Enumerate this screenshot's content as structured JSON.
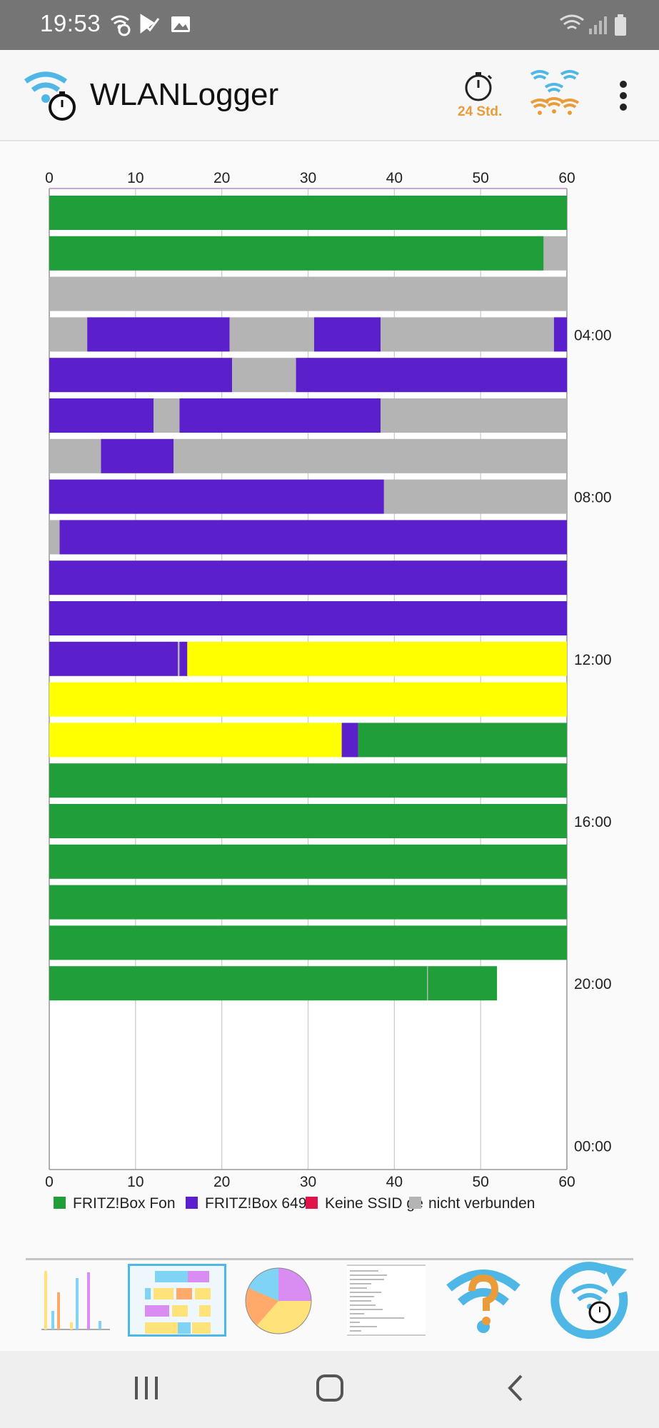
{
  "status_bar": {
    "time": "19:53",
    "left_icons": [
      "wifi-timer-icon",
      "download-check-icon",
      "image-icon"
    ],
    "right_icons": [
      "wifi-signal-icon",
      "cell-signal-icon",
      "battery-icon"
    ]
  },
  "app_bar": {
    "title": "WLANLogger",
    "timer_label": "24 Std.",
    "icons": [
      "wlanlogger-logo-icon",
      "stopwatch-icon",
      "wifi-networks-icon",
      "more-vert-icon"
    ]
  },
  "colors": {
    "fritz_fon": "#1f9e3a",
    "fritz_649": "#5b1fcc",
    "keine_ssid": "#e0144a",
    "nicht_verbunden": "#b4b4b4",
    "unknown_yellow": "#ffff00",
    "accent_blue": "#4fb7e6",
    "accent_orange": "#ea9c3b"
  },
  "chart_data": {
    "type": "bar",
    "orientation": "horizontal-stacked-timeline",
    "x_ticks": [
      "0",
      "10",
      "20",
      "30",
      "40",
      "50",
      "60"
    ],
    "xlim": [
      0,
      60
    ],
    "x_unit": "minutes",
    "y_labels": [
      "04:00",
      "08:00",
      "12:00",
      "16:00",
      "20:00",
      "00:00"
    ],
    "grid": true,
    "legend": [
      {
        "name": "FRITZ!Box Fon",
        "color": "#1f9e3a"
      },
      {
        "name": "FRITZ!Box 649",
        "color": "#5b1fcc"
      },
      {
        "name": "Keine SSID ge",
        "color": "#e0144a"
      },
      {
        "name": "nicht verbunden",
        "color": "#b4b4b4"
      }
    ],
    "legend_position": "bottom",
    "hours": [
      {
        "segments": [
          {
            "start": 0,
            "end": 60,
            "color": "#1f9e3a"
          }
        ]
      },
      {
        "segments": [
          {
            "start": 0,
            "end": 57.3,
            "color": "#1f9e3a"
          },
          {
            "start": 57.3,
            "end": 60,
            "color": "#b4b4b4"
          }
        ]
      },
      {
        "segments": [
          {
            "start": 0,
            "end": 60,
            "color": "#b4b4b4"
          }
        ]
      },
      {
        "segments": [
          {
            "start": 0,
            "end": 4.4,
            "color": "#b4b4b4"
          },
          {
            "start": 4.4,
            "end": 20.9,
            "color": "#5b1fcc"
          },
          {
            "start": 20.9,
            "end": 30.7,
            "color": "#b4b4b4"
          },
          {
            "start": 30.7,
            "end": 38.4,
            "color": "#5b1fcc"
          },
          {
            "start": 38.4,
            "end": 58.5,
            "color": "#b4b4b4"
          },
          {
            "start": 58.5,
            "end": 60,
            "color": "#5b1fcc"
          }
        ]
      },
      {
        "segments": [
          {
            "start": 0,
            "end": 21.2,
            "color": "#5b1fcc"
          },
          {
            "start": 21.2,
            "end": 28.6,
            "color": "#b4b4b4"
          },
          {
            "start": 28.6,
            "end": 60,
            "color": "#5b1fcc"
          }
        ]
      },
      {
        "segments": [
          {
            "start": 0,
            "end": 12.1,
            "color": "#5b1fcc"
          },
          {
            "start": 12.1,
            "end": 15.1,
            "color": "#b4b4b4"
          },
          {
            "start": 15.1,
            "end": 38.4,
            "color": "#5b1fcc"
          },
          {
            "start": 38.4,
            "end": 60,
            "color": "#b4b4b4"
          }
        ]
      },
      {
        "segments": [
          {
            "start": 0,
            "end": 6.0,
            "color": "#b4b4b4"
          },
          {
            "start": 6.0,
            "end": 14.4,
            "color": "#5b1fcc"
          },
          {
            "start": 14.4,
            "end": 60,
            "color": "#b4b4b4"
          }
        ]
      },
      {
        "segments": [
          {
            "start": 0,
            "end": 38.8,
            "color": "#5b1fcc"
          },
          {
            "start": 38.8,
            "end": 60,
            "color": "#b4b4b4"
          }
        ]
      },
      {
        "segments": [
          {
            "start": 0,
            "end": 1.2,
            "color": "#b4b4b4"
          },
          {
            "start": 1.2,
            "end": 60,
            "color": "#5b1fcc"
          }
        ]
      },
      {
        "segments": [
          {
            "start": 0,
            "end": 60,
            "color": "#5b1fcc"
          }
        ]
      },
      {
        "segments": [
          {
            "start": 0,
            "end": 60,
            "color": "#5b1fcc"
          }
        ]
      },
      {
        "segments": [
          {
            "start": 0,
            "end": 14.9,
            "color": "#5b1fcc"
          },
          {
            "start": 14.9,
            "end": 15.1,
            "color": "#b4b4b4"
          },
          {
            "start": 15.1,
            "end": 16.0,
            "color": "#5b1fcc"
          },
          {
            "start": 16.0,
            "end": 60,
            "color": "#ffff00"
          }
        ]
      },
      {
        "segments": [
          {
            "start": 0,
            "end": 60,
            "color": "#ffff00"
          }
        ]
      },
      {
        "segments": [
          {
            "start": 0,
            "end": 33.9,
            "color": "#ffff00"
          },
          {
            "start": 33.9,
            "end": 35.8,
            "color": "#5b1fcc"
          },
          {
            "start": 35.8,
            "end": 60,
            "color": "#1f9e3a"
          }
        ]
      },
      {
        "segments": [
          {
            "start": 0,
            "end": 60,
            "color": "#1f9e3a"
          }
        ]
      },
      {
        "segments": [
          {
            "start": 0,
            "end": 60,
            "color": "#1f9e3a"
          }
        ]
      },
      {
        "segments": [
          {
            "start": 0,
            "end": 60,
            "color": "#1f9e3a"
          }
        ]
      },
      {
        "segments": [
          {
            "start": 0,
            "end": 60,
            "color": "#1f9e3a"
          }
        ]
      },
      {
        "segments": [
          {
            "start": 0,
            "end": 60,
            "color": "#1f9e3a"
          }
        ]
      },
      {
        "segments": [
          {
            "start": 0,
            "end": 43.8,
            "color": "#1f9e3a"
          },
          {
            "start": 43.8,
            "end": 43.9,
            "color": "#b4b4b4"
          },
          {
            "start": 43.9,
            "end": 51.9,
            "color": "#1f9e3a"
          }
        ]
      }
    ]
  },
  "bottom_tabs": [
    {
      "name": "bar-chart-tab",
      "selected": false
    },
    {
      "name": "timeline-tab",
      "selected": true
    },
    {
      "name": "pie-chart-tab",
      "selected": false
    },
    {
      "name": "log-text-tab",
      "selected": false
    },
    {
      "name": "help-tab",
      "selected": false
    },
    {
      "name": "refresh-logger-tab",
      "selected": false
    }
  ],
  "nav_bar": {
    "buttons": [
      "recent-apps-button",
      "home-button",
      "back-button"
    ]
  }
}
